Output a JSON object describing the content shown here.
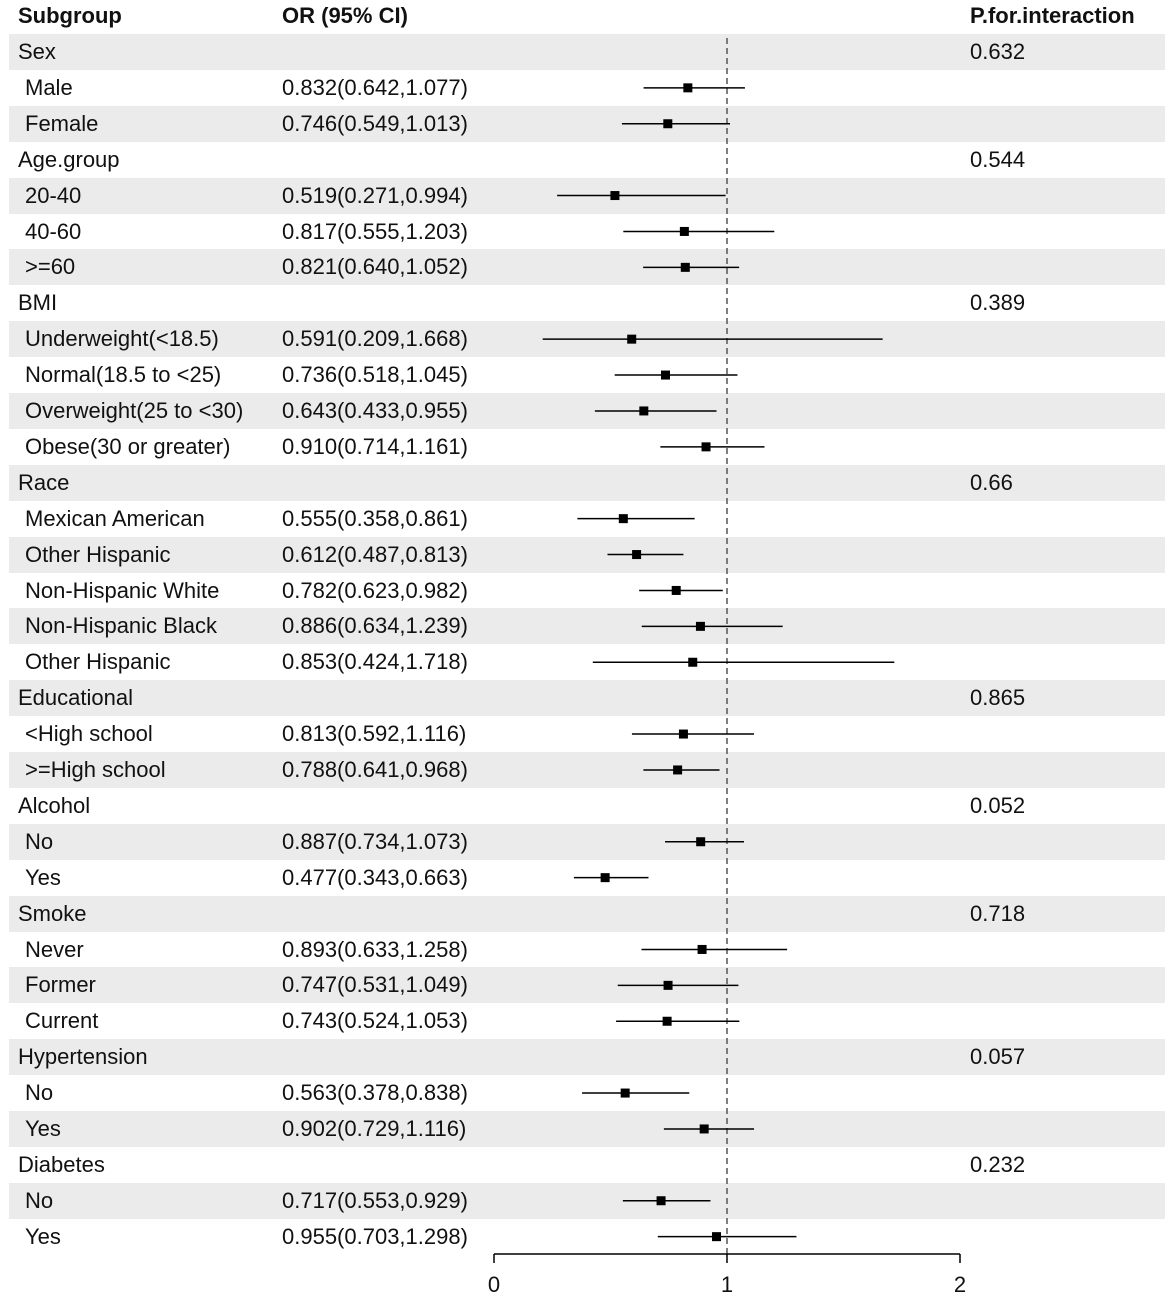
{
  "headers": {
    "subgroup": "Subgroup",
    "or_ci": "OR (95% CI)",
    "p_interaction": "P.for.interaction"
  },
  "chart_data": {
    "type": "forest",
    "xlim": [
      0,
      2
    ],
    "ticks": [
      "0",
      "1",
      "2"
    ],
    "reference_line": 1,
    "rows": [
      {
        "kind": "group",
        "label": "Sex",
        "p": "0.632"
      },
      {
        "kind": "item",
        "label": "Male",
        "ci_text": "0.832(0.642,1.077)",
        "or": 0.832,
        "lo": 0.642,
        "hi": 1.077
      },
      {
        "kind": "item",
        "label": "Female",
        "ci_text": "0.746(0.549,1.013)",
        "or": 0.746,
        "lo": 0.549,
        "hi": 1.013
      },
      {
        "kind": "group",
        "label": "Age.group",
        "p": "0.544"
      },
      {
        "kind": "item",
        "label": "20-40",
        "ci_text": "0.519(0.271,0.994)",
        "or": 0.519,
        "lo": 0.271,
        "hi": 0.994
      },
      {
        "kind": "item",
        "label": "40-60",
        "ci_text": "0.817(0.555,1.203)",
        "or": 0.817,
        "lo": 0.555,
        "hi": 1.203
      },
      {
        "kind": "item",
        "label": ">=60",
        "ci_text": "0.821(0.640,1.052)",
        "or": 0.821,
        "lo": 0.64,
        "hi": 1.052
      },
      {
        "kind": "group",
        "label": "BMI",
        "p": "0.389"
      },
      {
        "kind": "item",
        "label": "Underweight(<18.5)",
        "ci_text": "0.591(0.209,1.668)",
        "or": 0.591,
        "lo": 0.209,
        "hi": 1.668
      },
      {
        "kind": "item",
        "label": "Normal(18.5 to <25)",
        "ci_text": "0.736(0.518,1.045)",
        "or": 0.736,
        "lo": 0.518,
        "hi": 1.045
      },
      {
        "kind": "item",
        "label": "Overweight(25 to <30)",
        "ci_text": "0.643(0.433,0.955)",
        "or": 0.643,
        "lo": 0.433,
        "hi": 0.955
      },
      {
        "kind": "item",
        "label": "Obese(30 or greater)",
        "ci_text": "0.910(0.714,1.161)",
        "or": 0.91,
        "lo": 0.714,
        "hi": 1.161
      },
      {
        "kind": "group",
        "label": "Race",
        "p": "0.66"
      },
      {
        "kind": "item",
        "label": "Mexican American",
        "ci_text": "0.555(0.358,0.861)",
        "or": 0.555,
        "lo": 0.358,
        "hi": 0.861
      },
      {
        "kind": "item",
        "label": "Other Hispanic",
        "ci_text": "0.612(0.487,0.813)",
        "or": 0.612,
        "lo": 0.487,
        "hi": 0.813
      },
      {
        "kind": "item",
        "label": "Non-Hispanic White",
        "ci_text": "0.782(0.623,0.982)",
        "or": 0.782,
        "lo": 0.623,
        "hi": 0.982
      },
      {
        "kind": "item",
        "label": "Non-Hispanic Black",
        "ci_text": "0.886(0.634,1.239)",
        "or": 0.886,
        "lo": 0.634,
        "hi": 1.239
      },
      {
        "kind": "item",
        "label": "Other Hispanic",
        "ci_text": "0.853(0.424,1.718)",
        "or": 0.853,
        "lo": 0.424,
        "hi": 1.718
      },
      {
        "kind": "group",
        "label": "Educational",
        "p": "0.865"
      },
      {
        "kind": "item",
        "label": "<High school",
        "ci_text": "0.813(0.592,1.116)",
        "or": 0.813,
        "lo": 0.592,
        "hi": 1.116
      },
      {
        "kind": "item",
        "label": ">=High school",
        "ci_text": "0.788(0.641,0.968)",
        "or": 0.788,
        "lo": 0.641,
        "hi": 0.968
      },
      {
        "kind": "group",
        "label": "Alcohol",
        "p": "0.052"
      },
      {
        "kind": "item",
        "label": "No",
        "ci_text": "0.887(0.734,1.073)",
        "or": 0.887,
        "lo": 0.734,
        "hi": 1.073
      },
      {
        "kind": "item",
        "label": "Yes",
        "ci_text": "0.477(0.343,0.663)",
        "or": 0.477,
        "lo": 0.343,
        "hi": 0.663
      },
      {
        "kind": "group",
        "label": "Smoke",
        "p": "0.718"
      },
      {
        "kind": "item",
        "label": "Never",
        "ci_text": "0.893(0.633,1.258)",
        "or": 0.893,
        "lo": 0.633,
        "hi": 1.258
      },
      {
        "kind": "item",
        "label": "Former",
        "ci_text": "0.747(0.531,1.049)",
        "or": 0.747,
        "lo": 0.531,
        "hi": 1.049
      },
      {
        "kind": "item",
        "label": "Current",
        "ci_text": "0.743(0.524,1.053)",
        "or": 0.743,
        "lo": 0.524,
        "hi": 1.053
      },
      {
        "kind": "group",
        "label": "Hypertension",
        "p": "0.057"
      },
      {
        "kind": "item",
        "label": "No",
        "ci_text": "0.563(0.378,0.838)",
        "or": 0.563,
        "lo": 0.378,
        "hi": 0.838
      },
      {
        "kind": "item",
        "label": "Yes",
        "ci_text": "0.902(0.729,1.116)",
        "or": 0.902,
        "lo": 0.729,
        "hi": 1.116
      },
      {
        "kind": "group",
        "label": "Diabetes",
        "p": "0.232"
      },
      {
        "kind": "item",
        "label": "No",
        "ci_text": "0.717(0.553,0.929)",
        "or": 0.717,
        "lo": 0.553,
        "hi": 0.929
      },
      {
        "kind": "item",
        "label": "Yes",
        "ci_text": "0.955(0.703,1.298)",
        "or": 0.955,
        "lo": 0.703,
        "hi": 1.298
      }
    ]
  }
}
